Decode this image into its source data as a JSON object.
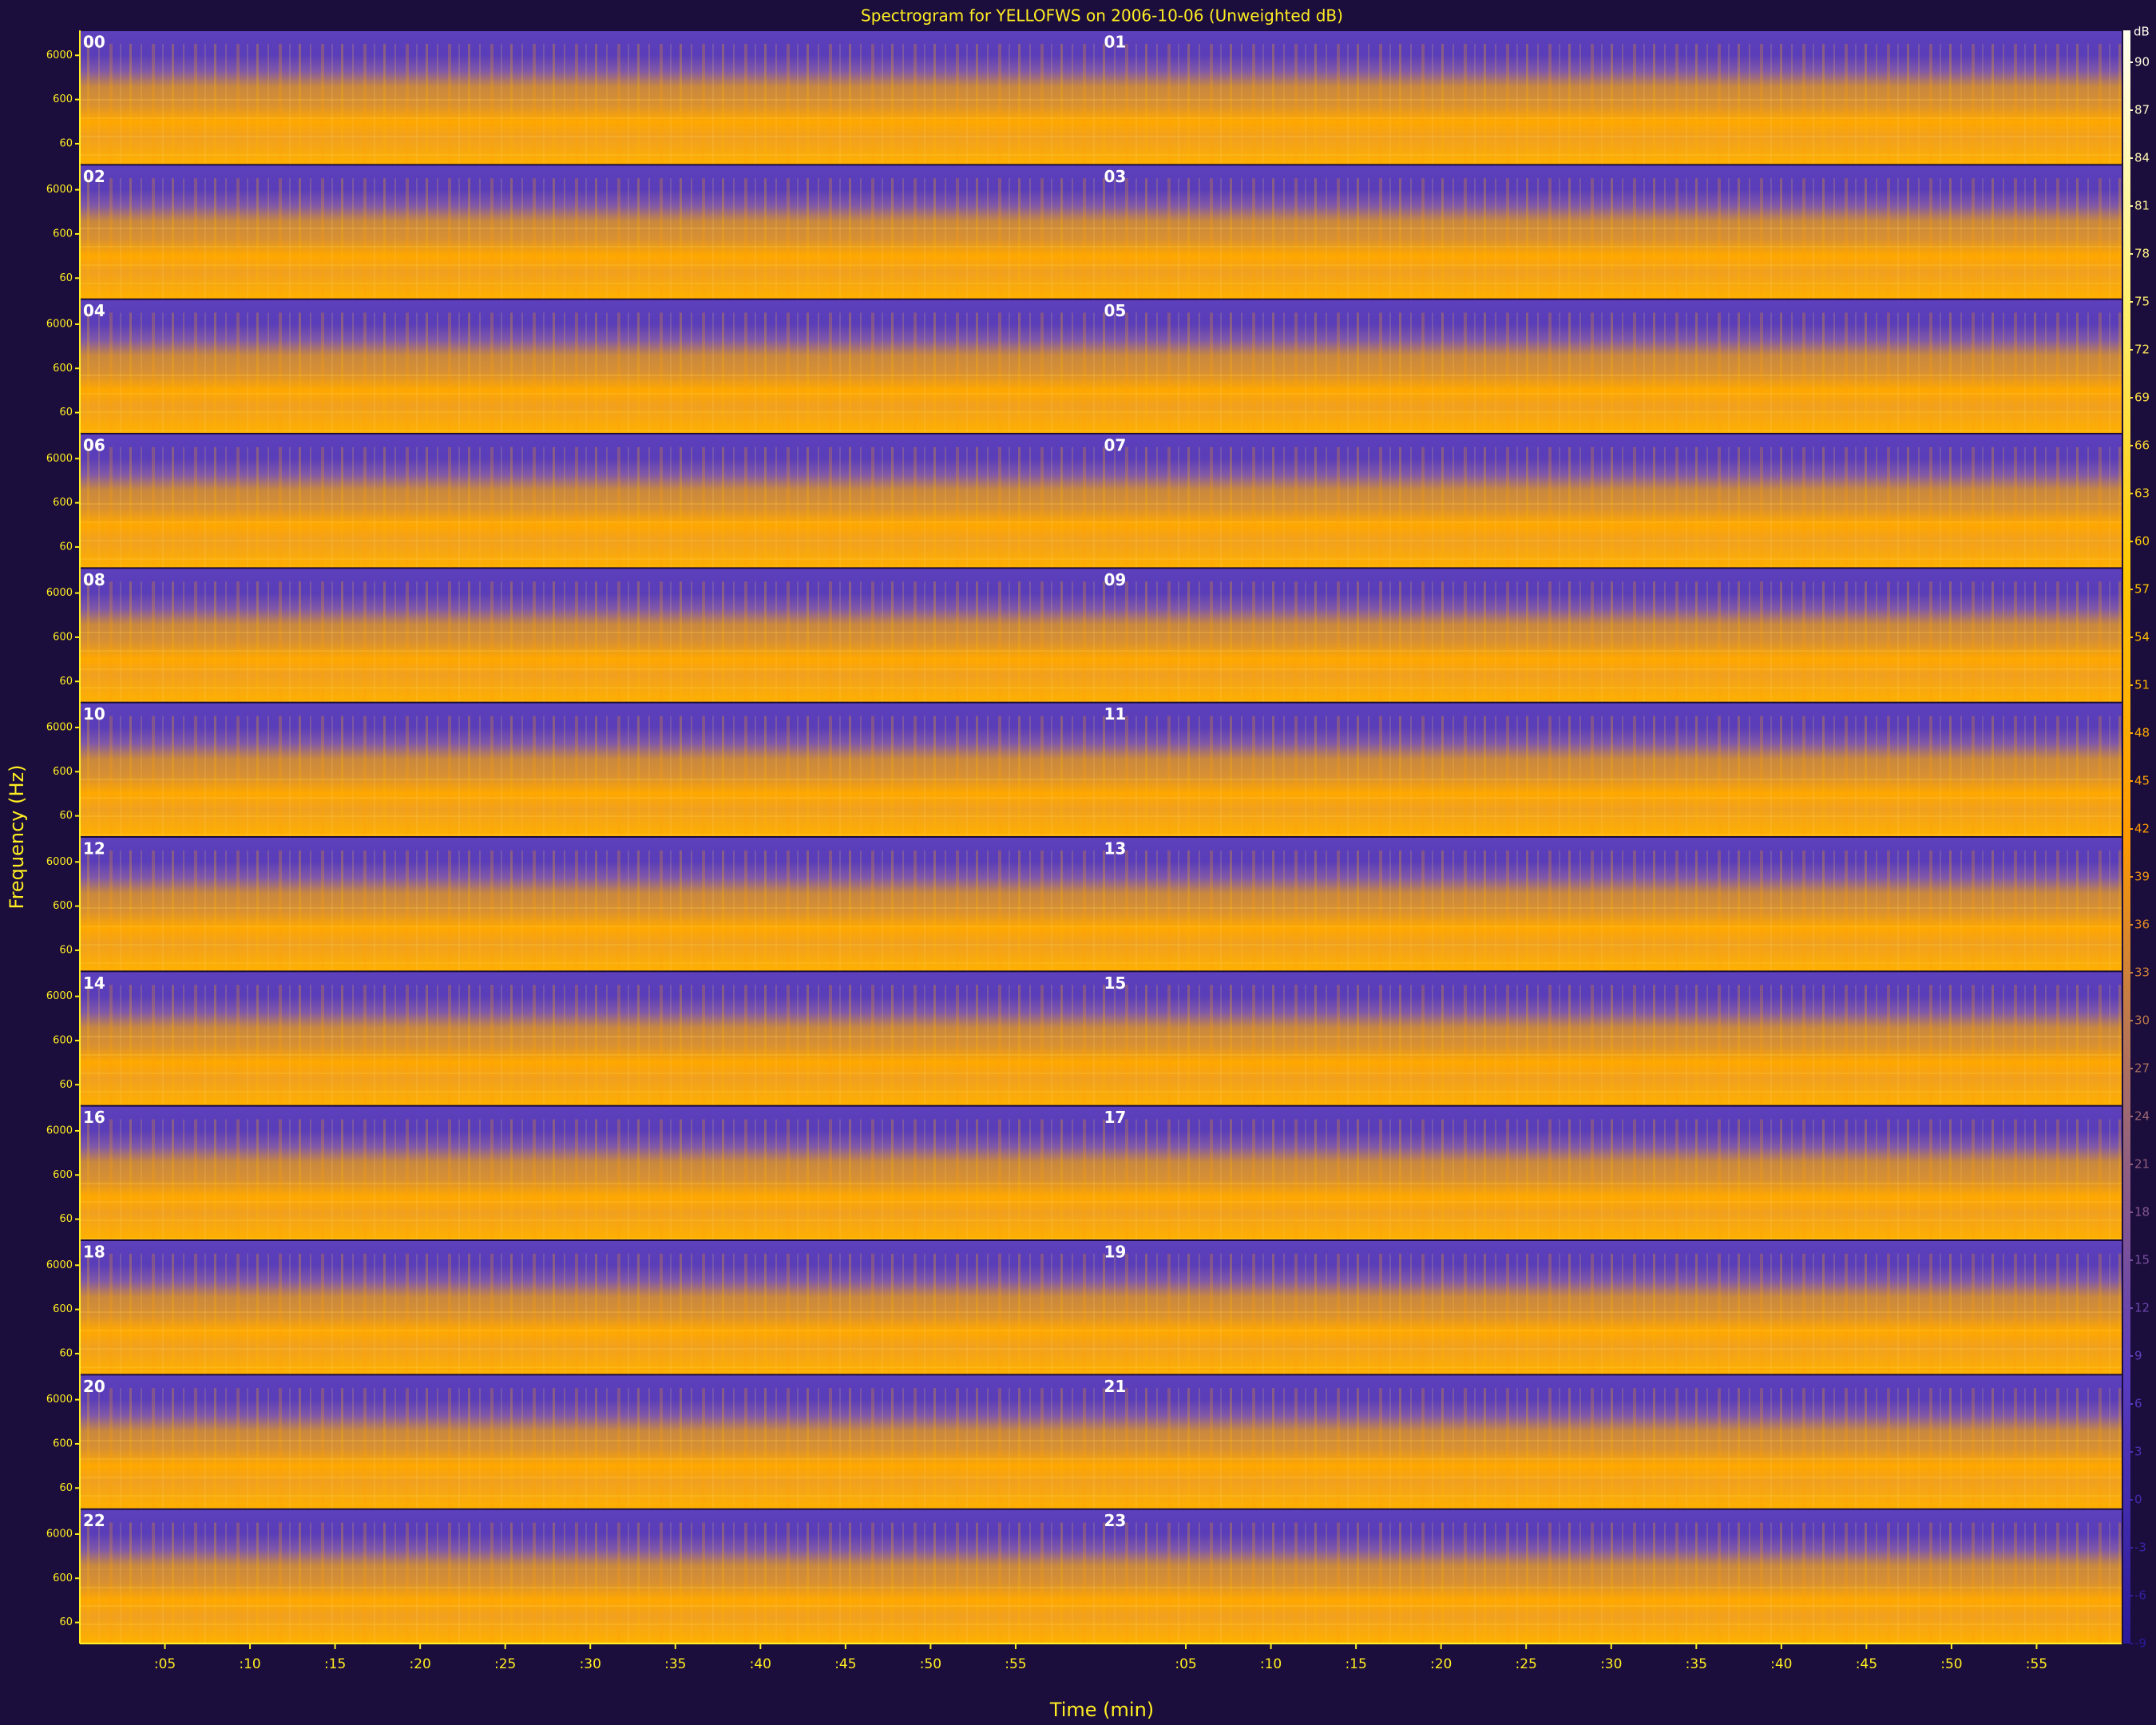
{
  "chart_data": {
    "type": "spectrogram",
    "title": "Spectrogram for YELLOFWS on 2006-10-06 (Unweighted dB)",
    "x_label": "Time (min)",
    "y_label": "Frequency (Hz)",
    "panels": [
      "00",
      "01",
      "02",
      "03",
      "04",
      "05",
      "06",
      "07",
      "08",
      "09",
      "10",
      "11",
      "12",
      "13",
      "14",
      "15",
      "16",
      "17",
      "18",
      "19",
      "20",
      "21",
      "22",
      "23"
    ],
    "xlim": [
      0,
      60
    ],
    "xticks": [
      {
        "value": 5,
        "label": ":05"
      },
      {
        "value": 10,
        "label": ":10"
      },
      {
        "value": 15,
        "label": ":15"
      },
      {
        "value": 20,
        "label": ":20"
      },
      {
        "value": 25,
        "label": ":25"
      },
      {
        "value": 30,
        "label": ":30"
      },
      {
        "value": 35,
        "label": ":35"
      },
      {
        "value": 40,
        "label": ":40"
      },
      {
        "value": 45,
        "label": ":45"
      },
      {
        "value": 50,
        "label": ":50"
      },
      {
        "value": 55,
        "label": ":55"
      }
    ],
    "ylim": [
      20,
      22050
    ],
    "yscale": "log",
    "yticks": [
      60,
      600,
      6000
    ],
    "colorbar_label": "dB",
    "clim": [
      -9,
      92
    ],
    "cticks": [
      90,
      87,
      84,
      81,
      78,
      75,
      72,
      69,
      66,
      63,
      60,
      57,
      54,
      51,
      48,
      45,
      42,
      39,
      36,
      33,
      30,
      27,
      24,
      21,
      18,
      15,
      12,
      9,
      6,
      3,
      0,
      -3,
      -6,
      -9
    ],
    "colormap": [
      "#2a1a9a",
      "#5a3cc0",
      "#a06a70",
      "#ff9a00",
      "#ffc800",
      "#fff070",
      "#fffff0"
    ]
  }
}
